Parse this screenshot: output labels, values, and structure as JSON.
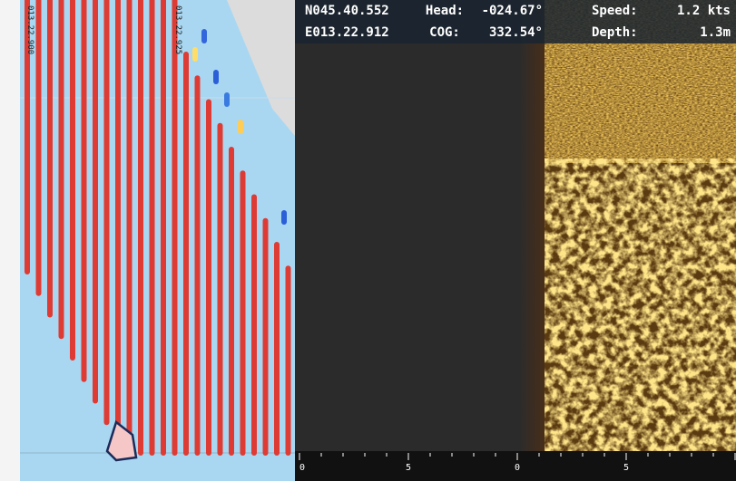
{
  "map": {
    "grid_labels": [
      "013.22.900",
      "013.22.925"
    ]
  },
  "header": {
    "rows": [
      {
        "position": "N045.40.552",
        "label1": "Head:",
        "value1": "-024.67°",
        "label2": "Speed:",
        "value2": "1.2 kts"
      },
      {
        "position": "E013.22.912",
        "label1": "COG:",
        "value1": "332.54°",
        "label2": "Depth:",
        "value2": "1.3m"
      }
    ]
  },
  "scale": {
    "labels": [
      "0",
      "5",
      "0",
      "5"
    ]
  }
}
